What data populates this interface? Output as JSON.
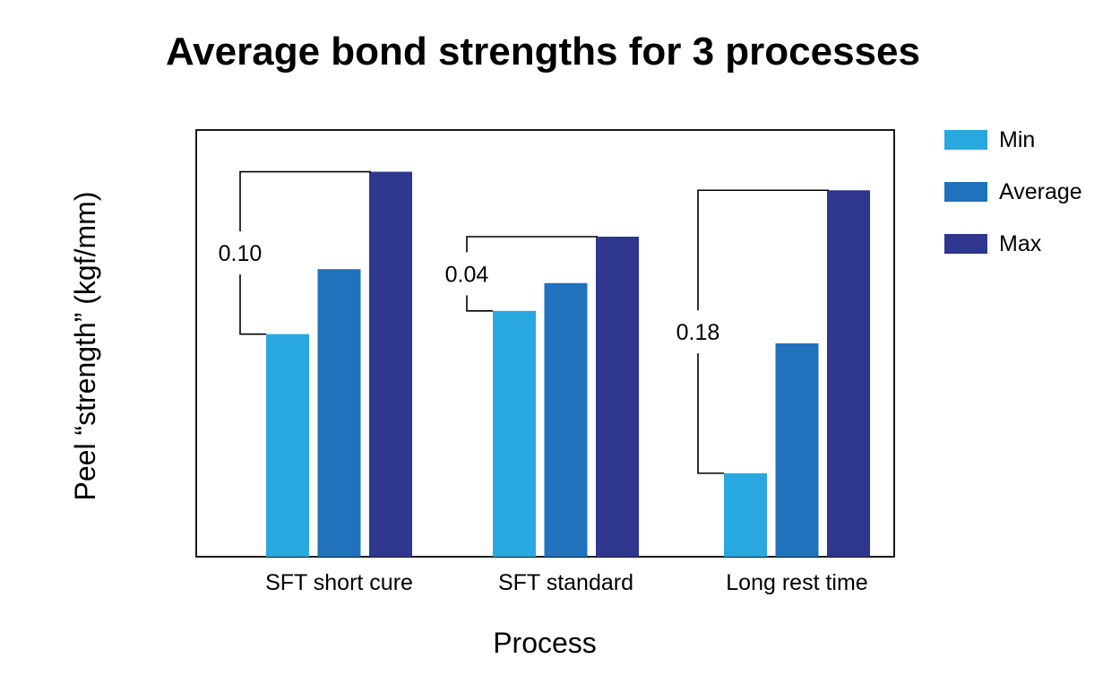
{
  "chart_data": {
    "type": "bar",
    "title": "Average bond strengths for 3 processes",
    "xlabel": "Process",
    "ylabel": "Peel “strength” (kgf/mm)",
    "categories": [
      "SFT short cure",
      "SFT standard",
      "Long rest time"
    ],
    "series": [
      {
        "name": "Min",
        "color": "#29a8e0",
        "values": [
          0.48,
          0.53,
          0.18
        ]
      },
      {
        "name": "Average",
        "color": "#1f72bb",
        "values": [
          0.62,
          0.59,
          0.46
        ]
      },
      {
        "name": "Max",
        "color": "#2e368d",
        "values": [
          0.83,
          0.69,
          0.79
        ]
      }
    ],
    "annotations": [
      {
        "category": "SFT short cure",
        "label": "0.10"
      },
      {
        "category": "SFT standard",
        "label": "0.04"
      },
      {
        "category": "Long rest time",
        "label": "0.18"
      }
    ],
    "ylim": [
      0,
      0.92
    ],
    "grid": false,
    "legend_position": "top-right",
    "show_y_ticks": false
  }
}
